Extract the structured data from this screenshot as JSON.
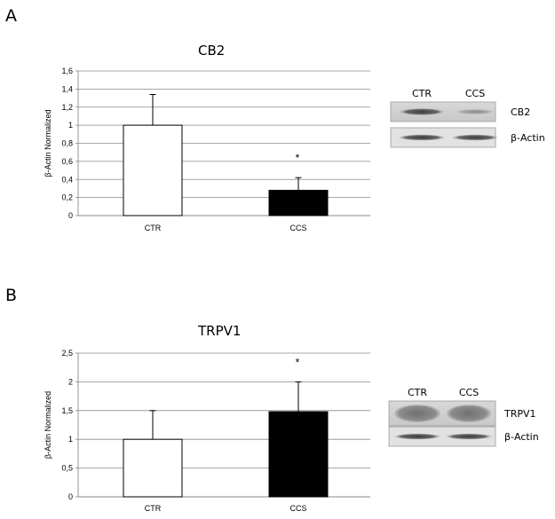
{
  "chart_data": [
    {
      "panel": "A",
      "type": "bar",
      "title": "CB2",
      "ylabel": "β-Actin Normalized",
      "xlabel": "",
      "categories": [
        "CTR",
        "CCS"
      ],
      "values": [
        1.0,
        0.28
      ],
      "errors": [
        0.34,
        0.14
      ],
      "bar_colors": [
        "#ffffff",
        "#000000"
      ],
      "significance": [
        "",
        "*"
      ],
      "ylim": [
        0,
        1.6
      ],
      "yticks": [
        0,
        0.2,
        0.4,
        0.6,
        0.8,
        1.0,
        1.2,
        1.4,
        1.6
      ],
      "ytick_labels": [
        "0",
        "0,2",
        "0,4",
        "0,6",
        "0,8",
        "1",
        "1,2",
        "1,4",
        "1,6"
      ],
      "grid": true,
      "blot": {
        "lane_labels": [
          "CTR",
          "CCS"
        ],
        "rows": [
          "CB2",
          "β-Actin"
        ]
      }
    },
    {
      "panel": "B",
      "type": "bar",
      "title": "TRPV1",
      "ylabel": "β-Actin Normalized",
      "xlabel": "",
      "categories": [
        "CTR",
        "CCS"
      ],
      "values": [
        1.0,
        1.48
      ],
      "errors": [
        0.5,
        0.52
      ],
      "bar_colors": [
        "#ffffff",
        "#000000"
      ],
      "significance": [
        "",
        "*"
      ],
      "ylim": [
        0,
        2.5
      ],
      "yticks": [
        0,
        0.5,
        1.0,
        1.5,
        2.0,
        2.5
      ],
      "ytick_labels": [
        "0",
        "0,5",
        "1",
        "1,5",
        "2",
        "2,5"
      ],
      "grid": true,
      "blot": {
        "lane_labels": [
          "CTR",
          "CCS"
        ],
        "rows": [
          "TRPV1",
          "β-Actin"
        ]
      }
    }
  ]
}
